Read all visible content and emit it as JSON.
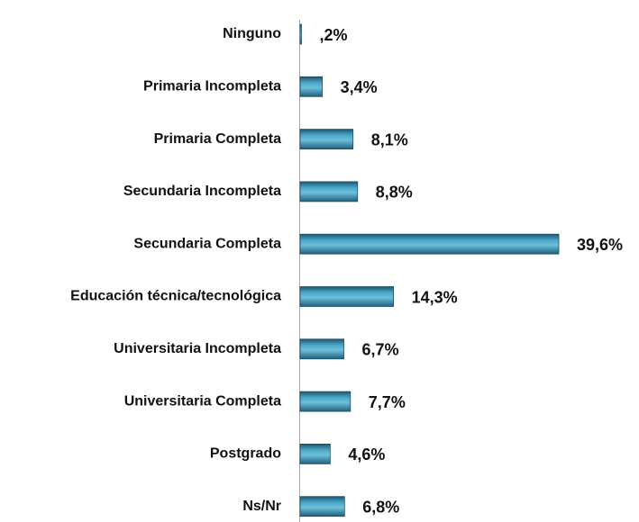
{
  "chart_data": {
    "type": "bar",
    "orientation": "horizontal",
    "categories": [
      "Ninguno",
      "Primaria Incompleta",
      "Primaria Completa",
      "Secundaria Incompleta",
      "Secundaria Completa",
      "Educación técnica/tecnológica",
      "Universitaria Incompleta",
      "Universitaria Completa",
      "Postgrado",
      "Ns/Nr"
    ],
    "values": [
      0.2,
      3.4,
      8.1,
      8.8,
      39.6,
      14.3,
      6.7,
      7.7,
      4.6,
      6.8
    ],
    "value_labels": [
      ",2%",
      "3,4%",
      "8,1%",
      "8,8%",
      "39,6%",
      "14,3%",
      "6,7%",
      "7,7%",
      "4,6%",
      "6,8%"
    ],
    "color": "#3a8fb0"
  }
}
